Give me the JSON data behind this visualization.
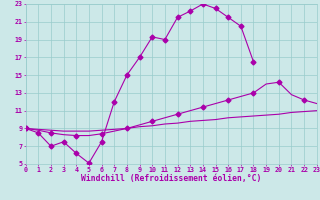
{
  "xlabel": "Windchill (Refroidissement éolien,°C)",
  "bg_color": "#cce8e8",
  "line_color": "#aa00aa",
  "grid_color": "#99cccc",
  "xmin": 0,
  "xmax": 23,
  "ymin": 5,
  "ymax": 23,
  "line1_x": [
    0,
    1,
    2,
    3,
    4,
    5,
    6,
    7,
    8,
    9,
    10,
    11,
    12,
    13,
    14,
    15,
    16,
    17,
    18
  ],
  "line1_y": [
    9,
    8.5,
    7.0,
    7.5,
    6.2,
    5.1,
    7.5,
    12.0,
    15.0,
    17.0,
    19.3,
    19.0,
    21.5,
    22.2,
    23.0,
    22.5,
    21.5,
    20.5,
    16.5
  ],
  "line2_x": [
    0,
    1,
    2,
    3,
    4,
    5,
    6,
    7,
    8,
    9,
    10,
    11,
    12,
    13,
    14,
    15,
    16,
    17,
    18,
    19,
    20,
    21,
    22,
    23
  ],
  "line2_y": [
    9,
    8.8,
    8.5,
    8.3,
    8.2,
    8.2,
    8.4,
    8.7,
    9.0,
    9.4,
    9.8,
    10.2,
    10.6,
    11.0,
    11.4,
    11.8,
    12.2,
    12.6,
    13.0,
    14.0,
    14.2,
    12.8,
    12.2,
    11.8
  ],
  "line3_x": [
    0,
    1,
    2,
    3,
    4,
    5,
    6,
    7,
    8,
    9,
    10,
    11,
    12,
    13,
    14,
    15,
    16,
    17,
    18,
    19,
    20,
    21,
    22,
    23
  ],
  "line3_y": [
    9,
    8.9,
    8.8,
    8.7,
    8.7,
    8.7,
    8.8,
    8.9,
    9.0,
    9.2,
    9.3,
    9.5,
    9.6,
    9.8,
    9.9,
    10.0,
    10.2,
    10.3,
    10.4,
    10.5,
    10.6,
    10.8,
    10.9,
    11.0
  ],
  "xticks": [
    0,
    1,
    2,
    3,
    4,
    5,
    6,
    7,
    8,
    9,
    10,
    11,
    12,
    13,
    14,
    15,
    16,
    17,
    18,
    19,
    20,
    21,
    22,
    23
  ],
  "yticks": [
    5,
    7,
    9,
    11,
    13,
    15,
    17,
    19,
    21,
    23
  ],
  "tick_fontsize": 4.8,
  "xlabel_fontsize": 5.8,
  "markersize": 2.5,
  "linewidth": 0.8
}
